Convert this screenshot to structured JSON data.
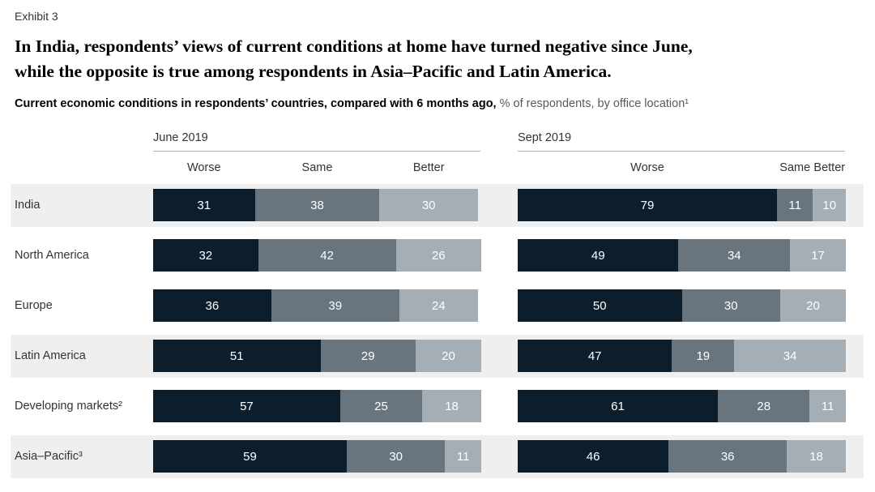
{
  "header": {
    "exhibit": "Exhibit 3",
    "title_line1": "In India, respondents’ views of current conditions at home have turned negative since June,",
    "title_line2": "while the opposite is true among respondents in Asia–Pacific and Latin America.",
    "subtitle_bold": "Current economic conditions in respondents’ countries, compared with 6 months ago,",
    "subtitle_rest": "% of respondents, by office location¹"
  },
  "chart_data": {
    "type": "bar",
    "variant": "stacked-horizontal",
    "title": "Current economic conditions in respondents’ countries, compared with 6 months ago",
    "unit": "% of respondents, by office location¹",
    "segments": [
      "Worse",
      "Same",
      "Better"
    ],
    "segment_colors": {
      "Worse": "#0c1e2c",
      "Same": "#68757f",
      "Better": "#a5adb5"
    },
    "categories": [
      "India",
      "North America",
      "Europe",
      "Latin America",
      "Developing markets²",
      "Asia–Pacific³"
    ],
    "panels": [
      {
        "label": "June 2019"
      },
      {
        "label": "Sept 2019"
      }
    ],
    "series": [
      {
        "panel": "June 2019",
        "values": [
          [
            31,
            38,
            30
          ],
          [
            32,
            42,
            26
          ],
          [
            36,
            39,
            24
          ],
          [
            51,
            29,
            20
          ],
          [
            57,
            25,
            18
          ],
          [
            59,
            30,
            11
          ]
        ]
      },
      {
        "panel": "Sept 2019",
        "values": [
          [
            79,
            11,
            10
          ],
          [
            49,
            34,
            17
          ],
          [
            50,
            30,
            20
          ],
          [
            47,
            19,
            34
          ],
          [
            61,
            28,
            11
          ],
          [
            46,
            36,
            18
          ]
        ]
      }
    ],
    "shaded_rows": [
      0,
      3,
      5
    ],
    "xlim": [
      0,
      100
    ],
    "legend_position": "column-headers-above-first-row"
  }
}
